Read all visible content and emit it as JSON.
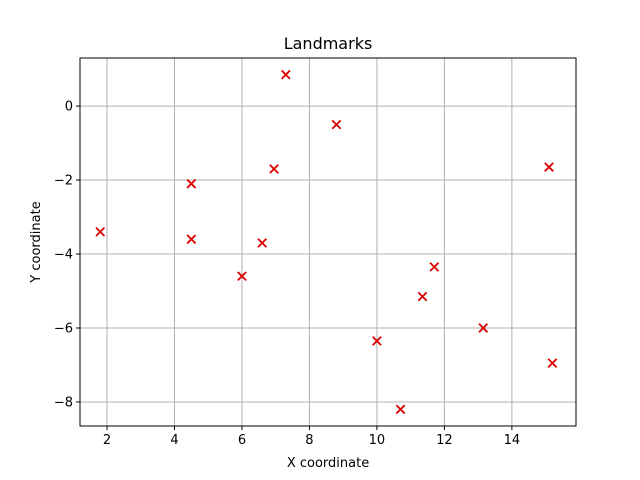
{
  "chart_data": {
    "type": "scatter",
    "title": "Landmarks",
    "xlabel": "X coordinate",
    "ylabel": "Y coordinate",
    "xlim": [
      1.2,
      15.9
    ],
    "ylim": [
      -8.65,
      1.3
    ],
    "xticks": [
      2,
      4,
      6,
      8,
      10,
      12,
      14
    ],
    "yticks": [
      0,
      -2,
      -4,
      -6,
      -8
    ],
    "grid": true,
    "marker": "x",
    "color": "#dd0000",
    "points": [
      {
        "x": 1.8,
        "y": -3.4
      },
      {
        "x": 4.5,
        "y": -2.1
      },
      {
        "x": 4.5,
        "y": -3.6
      },
      {
        "x": 6.0,
        "y": -4.6
      },
      {
        "x": 6.6,
        "y": -3.7
      },
      {
        "x": 6.95,
        "y": -1.7
      },
      {
        "x": 7.3,
        "y": 0.85
      },
      {
        "x": 8.8,
        "y": -0.5
      },
      {
        "x": 10.0,
        "y": -6.35
      },
      {
        "x": 10.7,
        "y": -8.2
      },
      {
        "x": 11.35,
        "y": -5.15
      },
      {
        "x": 11.7,
        "y": -4.35
      },
      {
        "x": 13.15,
        "y": -6.0
      },
      {
        "x": 15.1,
        "y": -1.65
      },
      {
        "x": 15.2,
        "y": -6.95
      }
    ]
  }
}
